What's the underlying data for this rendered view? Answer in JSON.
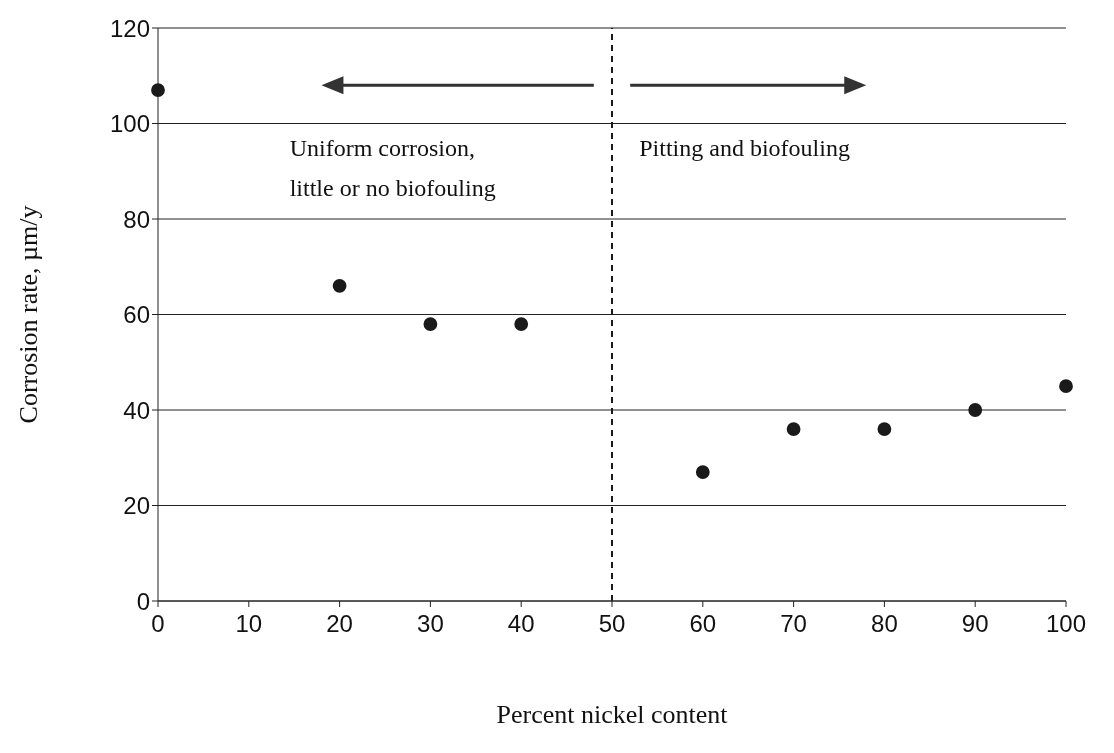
{
  "chart_data": {
    "type": "scatter",
    "xlabel": "Percent nickel content",
    "ylabel": "Corrosion rate, µm/y",
    "x": [
      0,
      20,
      30,
      40,
      60,
      70,
      80,
      90,
      100
    ],
    "values": [
      107,
      66,
      58,
      58,
      27,
      36,
      36,
      40,
      45
    ],
    "color": "#1a1a1a",
    "marker": "circle",
    "xlim": [
      0,
      100
    ],
    "xticks": [
      0,
      10,
      20,
      30,
      40,
      50,
      60,
      70,
      80,
      90,
      100
    ],
    "ylim": [
      0,
      120
    ],
    "yticks": [
      0,
      20,
      40,
      60,
      80,
      100,
      120
    ],
    "grid": "y",
    "ref_lines": [
      {
        "axis": "x",
        "value": 50,
        "line_style": "dashed",
        "color": "#1a1a1a"
      }
    ],
    "annotations": [
      "Uniform corrosion, little or no biofouling",
      "Pitting and biofouling"
    ]
  }
}
